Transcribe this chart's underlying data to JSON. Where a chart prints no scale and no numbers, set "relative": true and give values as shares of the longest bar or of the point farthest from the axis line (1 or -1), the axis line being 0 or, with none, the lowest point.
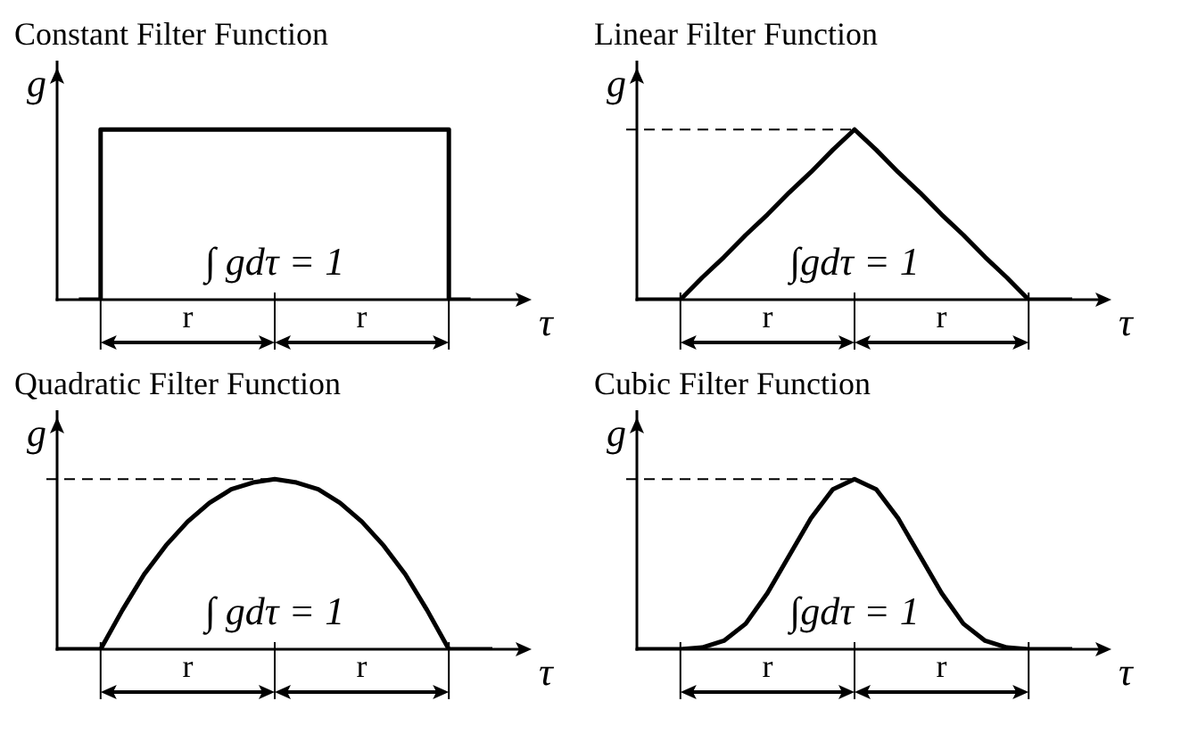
{
  "chart_data": [
    {
      "type": "step",
      "title": "Constant Filter Function",
      "xlabel": "τ",
      "ylabel": "g",
      "relative": true,
      "categories": [
        null,
        null,
        null,
        null,
        null,
        null,
        null,
        null,
        null,
        null
      ],
      "series": [
        {
          "color": "#000000",
          "values": [
            0,
            1,
            1,
            1,
            1,
            1,
            1,
            1,
            1,
            0
          ]
        }
      ],
      "annotations": [
        "∫ gdτ = 1",
        "r",
        "r"
      ]
    },
    {
      "type": "line",
      "title": "Linear Filter Function",
      "xlabel": "τ",
      "ylabel": "g",
      "relative": true,
      "categories": [
        null,
        null,
        null,
        null,
        null,
        null,
        null,
        null,
        null,
        null,
        null,
        null,
        null,
        null,
        null,
        null,
        null,
        null,
        null,
        null,
        null
      ],
      "series": [
        {
          "color": "#000000",
          "values": [
            0,
            0,
            0,
            0.13,
            0.25,
            0.38,
            0.5,
            0.63,
            0.75,
            0.88,
            1,
            0.88,
            0.75,
            0.63,
            0.5,
            0.38,
            0.25,
            0.13,
            0,
            0,
            0
          ]
        }
      ],
      "ref_lines": [
        {
          "axis": "y",
          "value": 1,
          "line_style": "dashed"
        }
      ],
      "annotations": [
        "∫gdτ = 1",
        "r",
        "r"
      ]
    },
    {
      "type": "line",
      "title": "Quadratic Filter Function",
      "xlabel": "τ",
      "ylabel": "g",
      "relative": true,
      "categories": [
        null,
        null,
        null,
        null,
        null,
        null,
        null,
        null,
        null,
        null,
        null,
        null,
        null,
        null,
        null,
        null,
        null,
        null,
        null,
        null,
        null
      ],
      "series": [
        {
          "color": "#000000",
          "values": [
            0,
            0,
            0,
            0.23,
            0.44,
            0.61,
            0.75,
            0.86,
            0.94,
            0.98,
            1,
            0.98,
            0.94,
            0.86,
            0.75,
            0.61,
            0.44,
            0.23,
            0,
            0,
            0
          ]
        }
      ],
      "ref_lines": [
        {
          "axis": "y",
          "value": 1,
          "line_style": "dashed"
        }
      ],
      "annotations": [
        "∫ gdτ = 1",
        "r",
        "r"
      ]
    },
    {
      "type": "line",
      "title": "Cubic Filter Function",
      "xlabel": "τ",
      "ylabel": "g",
      "relative": true,
      "categories": [
        null,
        null,
        null,
        null,
        null,
        null,
        null,
        null,
        null,
        null,
        null,
        null,
        null,
        null,
        null,
        null,
        null,
        null,
        null,
        null,
        null
      ],
      "series": [
        {
          "color": "#000000",
          "values": [
            0,
            0,
            0,
            0.01,
            0.05,
            0.15,
            0.33,
            0.55,
            0.77,
            0.94,
            1,
            0.94,
            0.77,
            0.55,
            0.33,
            0.15,
            0.05,
            0.01,
            0,
            0,
            0
          ]
        }
      ],
      "ref_lines": [
        {
          "axis": "y",
          "value": 1,
          "line_style": "dashed"
        }
      ],
      "annotations": [
        "∫gdτ = 1",
        "r",
        "r"
      ]
    }
  ]
}
